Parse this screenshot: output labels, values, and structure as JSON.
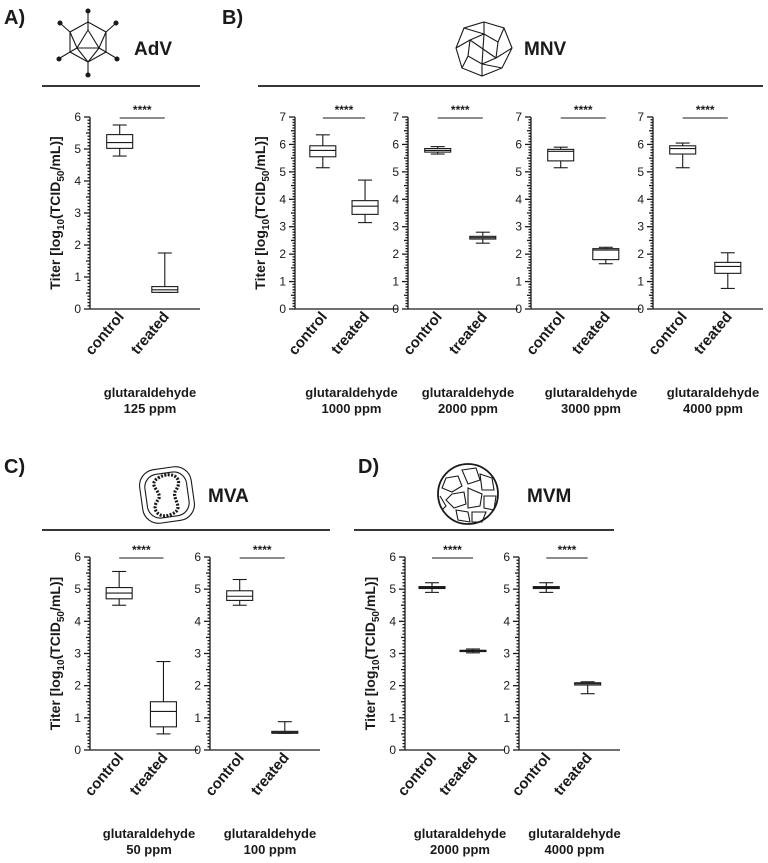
{
  "panels": [
    {
      "letter": "A)",
      "virus": "AdV",
      "icon": "adenovirus-icosahedron-icon"
    },
    {
      "letter": "B)",
      "virus": "MNV",
      "icon": "norovirus-capsid-icon"
    },
    {
      "letter": "C)",
      "virus": "MVA",
      "icon": "vaccinia-poxvirus-icon"
    },
    {
      "letter": "D)",
      "virus": "MVM",
      "icon": "minute-virus-capsid-icon"
    }
  ],
  "chart_data": [
    {
      "type": "box",
      "panel": "A)",
      "virus": "AdV",
      "condition": [
        "glutaraldehyde",
        "125 ppm"
      ],
      "ylabel": "Titer [log10(TCID50/mL)]",
      "ylim": [
        0,
        6
      ],
      "yticks": [
        0,
        1,
        2,
        3,
        4,
        5,
        6
      ],
      "categories": [
        "control",
        "treated"
      ],
      "significance": "****",
      "boxes": [
        {
          "min": 4.78,
          "q1": 5.02,
          "median": 5.2,
          "q3": 5.45,
          "max": 5.75
        },
        {
          "min": 0.52,
          "q1": 0.52,
          "median": 0.6,
          "q3": 0.7,
          "max": 1.75
        }
      ]
    },
    {
      "type": "box",
      "panel": "B)",
      "virus": "MNV",
      "condition": [
        "glutaraldehyde",
        "1000 ppm"
      ],
      "ylabel": "Titer [log10(TCID50/mL)]",
      "ylim": [
        0,
        7
      ],
      "yticks": [
        0,
        1,
        2,
        3,
        4,
        5,
        6,
        7
      ],
      "categories": [
        "control",
        "treated"
      ],
      "significance": "****",
      "boxes": [
        {
          "min": 5.15,
          "q1": 5.55,
          "median": 5.78,
          "q3": 5.95,
          "max": 6.35
        },
        {
          "min": 3.15,
          "q1": 3.45,
          "median": 3.75,
          "q3": 3.95,
          "max": 4.7
        }
      ]
    },
    {
      "type": "box",
      "panel": "B)",
      "virus": "MNV",
      "condition": [
        "glutaraldehyde",
        "2000 ppm"
      ],
      "ylim": [
        0,
        7
      ],
      "categories": [
        "control",
        "treated"
      ],
      "significance": "****",
      "boxes": [
        {
          "min": 5.65,
          "q1": 5.72,
          "median": 5.78,
          "q3": 5.85,
          "max": 5.92
        },
        {
          "min": 2.4,
          "q1": 2.55,
          "median": 2.6,
          "q3": 2.65,
          "max": 2.8
        }
      ]
    },
    {
      "type": "box",
      "panel": "B)",
      "virus": "MNV",
      "condition": [
        "glutaraldehyde",
        "3000 ppm"
      ],
      "ylim": [
        0,
        7
      ],
      "categories": [
        "control",
        "treated"
      ],
      "significance": "****",
      "boxes": [
        {
          "min": 5.15,
          "q1": 5.4,
          "median": 5.75,
          "q3": 5.82,
          "max": 5.9
        },
        {
          "min": 1.65,
          "q1": 1.8,
          "median": 2.15,
          "q3": 2.2,
          "max": 2.25
        }
      ]
    },
    {
      "type": "box",
      "panel": "B)",
      "virus": "MNV",
      "condition": [
        "glutaraldehyde",
        "4000 ppm"
      ],
      "ylim": [
        0,
        7
      ],
      "categories": [
        "control",
        "treated"
      ],
      "significance": "****",
      "boxes": [
        {
          "min": 5.15,
          "q1": 5.65,
          "median": 5.85,
          "q3": 5.95,
          "max": 6.05
        },
        {
          "min": 0.75,
          "q1": 1.3,
          "median": 1.55,
          "q3": 1.7,
          "max": 2.05
        }
      ]
    },
    {
      "type": "box",
      "panel": "C)",
      "virus": "MVA",
      "condition": [
        "glutaraldehyde",
        "50 ppm"
      ],
      "ylabel": "Titer [log10(TCID50/mL)]",
      "ylim": [
        0,
        6
      ],
      "yticks": [
        0,
        1,
        2,
        3,
        4,
        5,
        6
      ],
      "categories": [
        "control",
        "treated"
      ],
      "significance": "****",
      "boxes": [
        {
          "min": 4.5,
          "q1": 4.7,
          "median": 4.88,
          "q3": 5.05,
          "max": 5.55
        },
        {
          "min": 0.5,
          "q1": 0.72,
          "median": 1.2,
          "q3": 1.5,
          "max": 2.75
        }
      ]
    },
    {
      "type": "box",
      "panel": "C)",
      "virus": "MVA",
      "condition": [
        "glutaraldehyde",
        "100 ppm"
      ],
      "ylim": [
        0,
        6
      ],
      "categories": [
        "control",
        "treated"
      ],
      "significance": "****",
      "boxes": [
        {
          "min": 4.5,
          "q1": 4.65,
          "median": 4.78,
          "q3": 4.95,
          "max": 5.3
        },
        {
          "min": 0.52,
          "q1": 0.52,
          "median": 0.55,
          "q3": 0.58,
          "max": 0.88
        }
      ]
    },
    {
      "type": "box",
      "panel": "D)",
      "virus": "MVM",
      "condition": [
        "glutaraldehyde",
        "2000 ppm"
      ],
      "ylabel": "Titer [log10(TCID50/mL)]",
      "ylim": [
        0,
        6
      ],
      "yticks": [
        0,
        1,
        2,
        3,
        4,
        5,
        6
      ],
      "categories": [
        "control",
        "treated"
      ],
      "significance": "****",
      "boxes": [
        {
          "min": 4.9,
          "q1": 5.02,
          "median": 5.05,
          "q3": 5.08,
          "max": 5.2
        },
        {
          "min": 3.02,
          "q1": 3.06,
          "median": 3.08,
          "q3": 3.1,
          "max": 3.14
        }
      ]
    },
    {
      "type": "box",
      "panel": "D)",
      "virus": "MVM",
      "condition": [
        "glutaraldehyde",
        "4000 ppm"
      ],
      "ylim": [
        0,
        6
      ],
      "categories": [
        "control",
        "treated"
      ],
      "significance": "****",
      "boxes": [
        {
          "min": 4.9,
          "q1": 5.02,
          "median": 5.05,
          "q3": 5.08,
          "max": 5.2
        },
        {
          "min": 1.75,
          "q1": 2.02,
          "median": 2.06,
          "q3": 2.09,
          "max": 2.12
        }
      ]
    }
  ]
}
